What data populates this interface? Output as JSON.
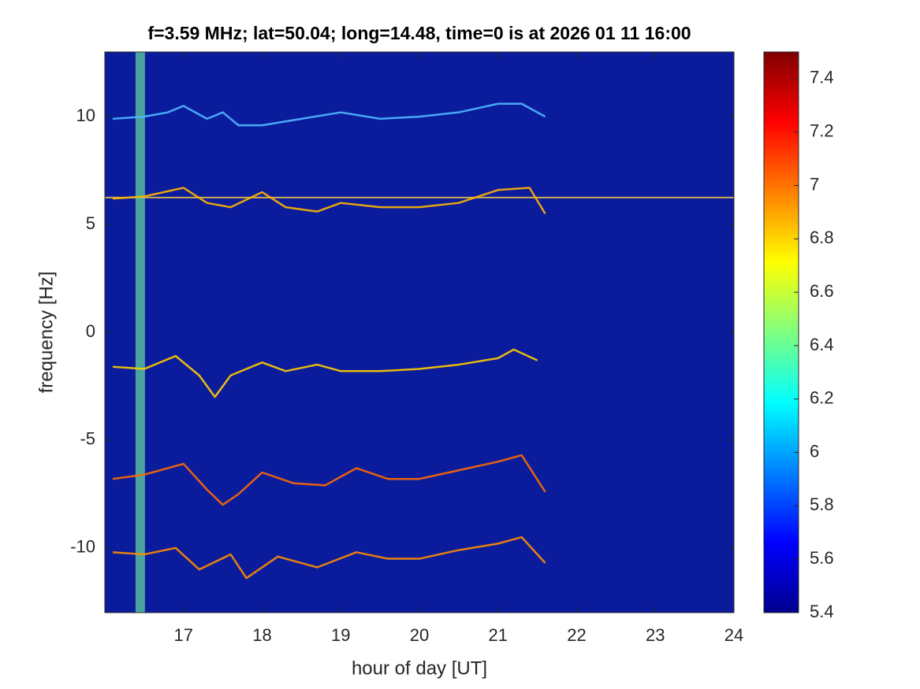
{
  "chart_data": {
    "type": "spectrogram",
    "title": "f=3.59 MHz;  lat=50.04; long=14.48, time=0 is at 2026 01 11 16:00",
    "x_label": "hour of day [UT]",
    "y_label": "frequency [Hz]",
    "xlim": [
      16,
      24
    ],
    "ylim": [
      -13,
      13
    ],
    "xticks": [
      17,
      18,
      19,
      20,
      21,
      22,
      23,
      24
    ],
    "yticks": [
      -10,
      -5,
      0,
      5,
      10
    ],
    "colormap": "jet",
    "background_color": "#0a1c9c",
    "clim": [
      5.4,
      7.5
    ],
    "cticks": [
      5.4,
      5.6,
      5.8,
      6,
      6.2,
      6.4,
      6.6,
      6.8,
      7,
      7.2,
      7.4
    ],
    "hlines": [
      6.25
    ],
    "vlines": [
      16.45
    ],
    "series": [
      {
        "color": "#4fb8ff",
        "x": [
          16.1,
          16.5,
          16.8,
          17,
          17.3,
          17.5,
          17.7,
          18,
          18.5,
          19,
          19.5,
          20,
          20.5,
          21,
          21.3,
          21.6
        ],
        "y": [
          9.9,
          10,
          10.2,
          10.5,
          9.9,
          10.2,
          9.6,
          9.6,
          9.9,
          10.2,
          9.9,
          10,
          10.2,
          10.6,
          10.6,
          10
        ]
      },
      {
        "color": "#ffb400",
        "x": [
          16.1,
          16.5,
          17,
          17.3,
          17.6,
          18,
          18.3,
          18.7,
          19,
          19.5,
          20,
          20.5,
          21,
          21.4,
          21.6
        ],
        "y": [
          6.2,
          6.3,
          6.7,
          6,
          5.8,
          6.5,
          5.8,
          5.6,
          6,
          5.8,
          5.8,
          6,
          6.6,
          6.7,
          5.5
        ]
      },
      {
        "color": "#ffcc00",
        "x": [
          16.1,
          16.5,
          16.9,
          17.2,
          17.4,
          17.6,
          18,
          18.3,
          18.7,
          19,
          19.5,
          20,
          20.5,
          21,
          21.2,
          21.5
        ],
        "y": [
          -1.6,
          -1.7,
          -1.1,
          -2,
          -3,
          -2,
          -1.4,
          -1.8,
          -1.5,
          -1.8,
          -1.8,
          -1.7,
          -1.5,
          -1.2,
          -0.8,
          -1.3
        ]
      },
      {
        "color": "#ff6a00",
        "x": [
          16.1,
          16.5,
          17,
          17.3,
          17.5,
          17.7,
          18,
          18.4,
          18.8,
          19.2,
          19.6,
          20,
          20.5,
          21,
          21.3,
          21.6
        ],
        "y": [
          -6.8,
          -6.6,
          -6.1,
          -7.3,
          -8,
          -7.5,
          -6.5,
          -7,
          -7.1,
          -6.3,
          -6.8,
          -6.8,
          -6.4,
          -6,
          -5.7,
          -7.4
        ]
      },
      {
        "color": "#ff8c00",
        "x": [
          16.1,
          16.5,
          16.9,
          17.2,
          17.6,
          17.8,
          18.2,
          18.7,
          19.2,
          19.6,
          20,
          20.5,
          21,
          21.3,
          21.6
        ],
        "y": [
          -10.2,
          -10.3,
          -10,
          -11,
          -10.3,
          -11.4,
          -10.4,
          -10.9,
          -10.2,
          -10.5,
          -10.5,
          -10.1,
          -9.8,
          -9.5,
          -10.7
        ]
      }
    ]
  }
}
